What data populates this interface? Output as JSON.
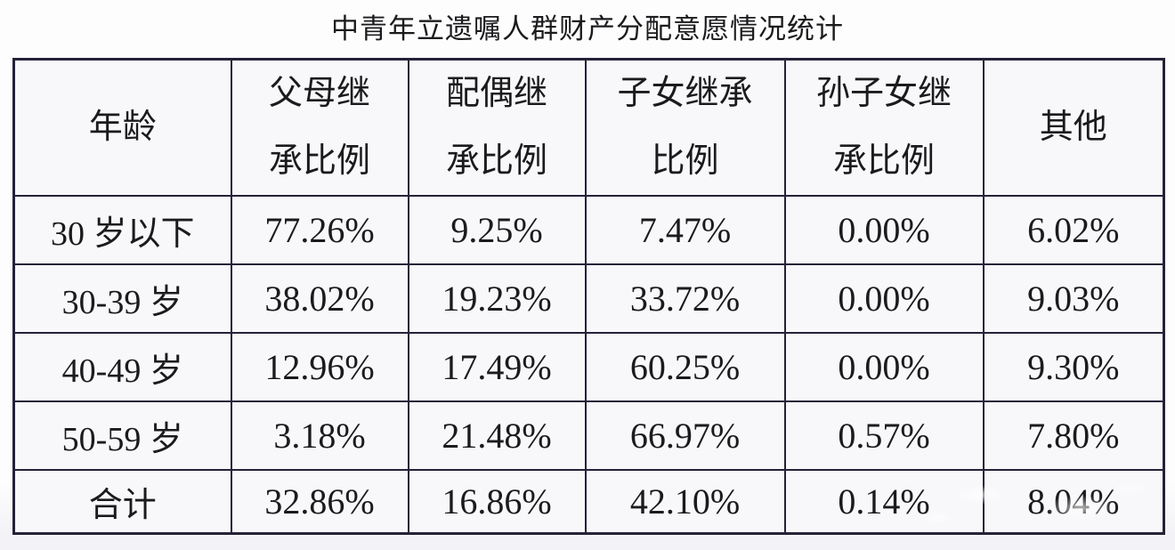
{
  "title": "中青年立遗嘱人群财产分配意愿情况统计",
  "chart_data": {
    "type": "table",
    "title": "中青年立遗嘱人群财产分配意愿情况统计",
    "row_header": "年龄",
    "categories": [
      "30 岁以下",
      "30-39 岁",
      "40-49 岁",
      "50-59 岁",
      "合计"
    ],
    "series": [
      {
        "name": "父母继承比例",
        "values": [
          "77.26%",
          "38.02%",
          "12.96%",
          "3.18%",
          "32.86%"
        ]
      },
      {
        "name": "配偶继承比例",
        "values": [
          "9.25%",
          "19.23%",
          "17.49%",
          "21.48%",
          "16.86%"
        ]
      },
      {
        "name": "子女继承比例",
        "values": [
          "7.47%",
          "33.72%",
          "60.25%",
          "66.97%",
          "42.10%"
        ]
      },
      {
        "name": "孙子女继承比例",
        "values": [
          "0.00%",
          "0.00%",
          "0.00%",
          "0.57%",
          "0.14%"
        ]
      },
      {
        "name": "其他",
        "values": [
          "6.02%",
          "9.03%",
          "9.30%",
          "7.80%",
          "8.04%"
        ]
      }
    ],
    "layout_hints": {
      "grid": true,
      "last_row_is_total": true
    }
  },
  "header_display": {
    "age_lines": [
      "年龄"
    ],
    "column_lines": [
      [
        "父母继",
        "承比例"
      ],
      [
        "配偶继",
        "承比例"
      ],
      [
        "子女继承",
        "比例"
      ],
      [
        "孙子女继",
        "承比例"
      ],
      [
        "其他"
      ]
    ]
  },
  "colors": {
    "border": "#262138",
    "cell_bg": "#f8f8fb",
    "text": "#1b1b1d",
    "page_top": "#fdfdfe",
    "page_bottom": "#f3f3f7"
  }
}
